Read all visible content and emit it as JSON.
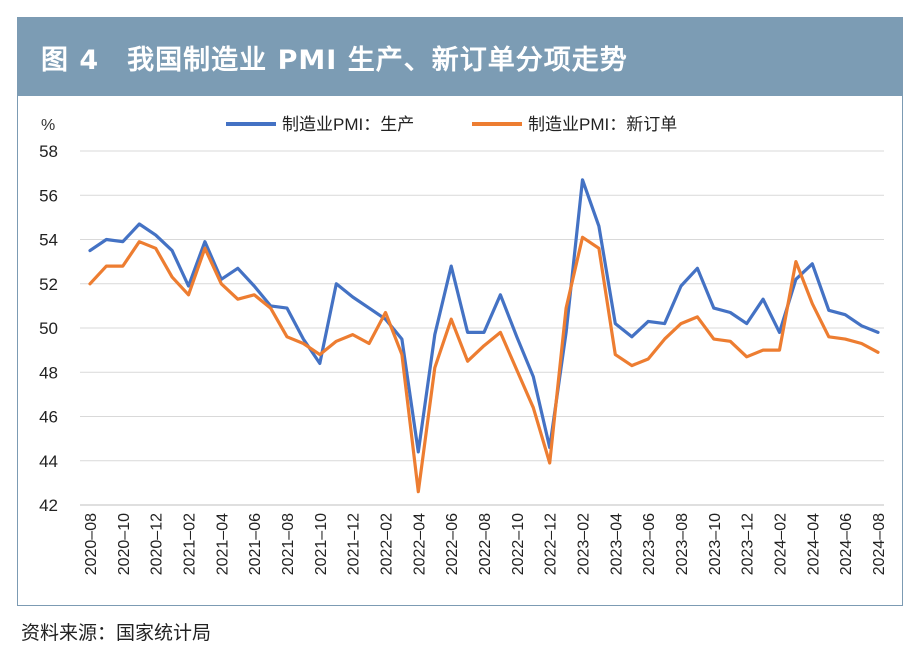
{
  "figure": {
    "title": "图 4　我国制造业 PMI 生产、新订单分项走势",
    "source": "资料来源：国家统计局"
  },
  "colors": {
    "header": "#7c9cb4",
    "production": "#4472c4",
    "new_orders": "#ed7d31",
    "grid": "#d9d9d9"
  },
  "chart_data": {
    "type": "line",
    "ylabel": "%",
    "ylim": [
      42,
      58
    ],
    "yticks": [
      "42",
      "44",
      "46",
      "48",
      "50",
      "52",
      "54",
      "56",
      "58"
    ],
    "grid": "horizontal",
    "legend": "top-center",
    "x": [
      "2020-08",
      "2020-09",
      "2020-10",
      "2020-11",
      "2020-12",
      "2021-01",
      "2021-02",
      "2021-03",
      "2021-04",
      "2021-05",
      "2021-06",
      "2021-07",
      "2021-08",
      "2021-09",
      "2021-10",
      "2021-11",
      "2021-12",
      "2022-01",
      "2022-02",
      "2022-03",
      "2022-04",
      "2022-05",
      "2022-06",
      "2022-07",
      "2022-08",
      "2022-09",
      "2022-10",
      "2022-11",
      "2022-12",
      "2023-01",
      "2023-02",
      "2023-03",
      "2023-04",
      "2023-05",
      "2023-06",
      "2023-07",
      "2023-08",
      "2023-09",
      "2023-10",
      "2023-11",
      "2023-12",
      "2024-01",
      "2024-02",
      "2024-03",
      "2024-04",
      "2024-05",
      "2024-06",
      "2024-07",
      "2024-08"
    ],
    "xticks": [
      "2020–08",
      "2020–10",
      "2020–12",
      "2021–02",
      "2021–04",
      "2021–06",
      "2021–08",
      "2021–10",
      "2021–12",
      "2022–02",
      "2022–04",
      "2022–06",
      "2022–08",
      "2022–10",
      "2022–12",
      "2023–02",
      "2023–04",
      "2023–06",
      "2023–08",
      "2023–10",
      "2023–12",
      "2024–02",
      "2024–04",
      "2024–06",
      "2024–08"
    ],
    "series": [
      {
        "name": "制造业PMI：生产",
        "color": "#4472c4",
        "values": [
          53.5,
          54.0,
          53.9,
          54.7,
          54.2,
          53.5,
          51.9,
          53.9,
          52.2,
          52.7,
          51.9,
          51.0,
          50.9,
          49.5,
          48.4,
          52.0,
          51.4,
          50.9,
          50.4,
          49.5,
          44.4,
          49.7,
          52.8,
          49.8,
          49.8,
          51.5,
          49.6,
          47.8,
          44.6,
          49.8,
          56.7,
          54.6,
          50.2,
          49.6,
          50.3,
          50.2,
          51.9,
          52.7,
          50.9,
          50.7,
          50.2,
          51.3,
          49.8,
          52.2,
          52.9,
          50.8,
          50.6,
          50.1,
          49.8
        ]
      },
      {
        "name": "制造业PMI：新订单",
        "color": "#ed7d31",
        "values": [
          52.0,
          52.8,
          52.8,
          53.9,
          53.6,
          52.3,
          51.5,
          53.6,
          52.0,
          51.3,
          51.5,
          50.9,
          49.6,
          49.3,
          48.8,
          49.4,
          49.7,
          49.3,
          50.7,
          48.8,
          42.6,
          48.2,
          50.4,
          48.5,
          49.2,
          49.8,
          48.1,
          46.4,
          43.9,
          50.9,
          54.1,
          53.6,
          48.8,
          48.3,
          48.6,
          49.5,
          50.2,
          50.5,
          49.5,
          49.4,
          48.7,
          49.0,
          49.0,
          53.0,
          51.1,
          49.6,
          49.5,
          49.3,
          48.9
        ]
      }
    ]
  }
}
